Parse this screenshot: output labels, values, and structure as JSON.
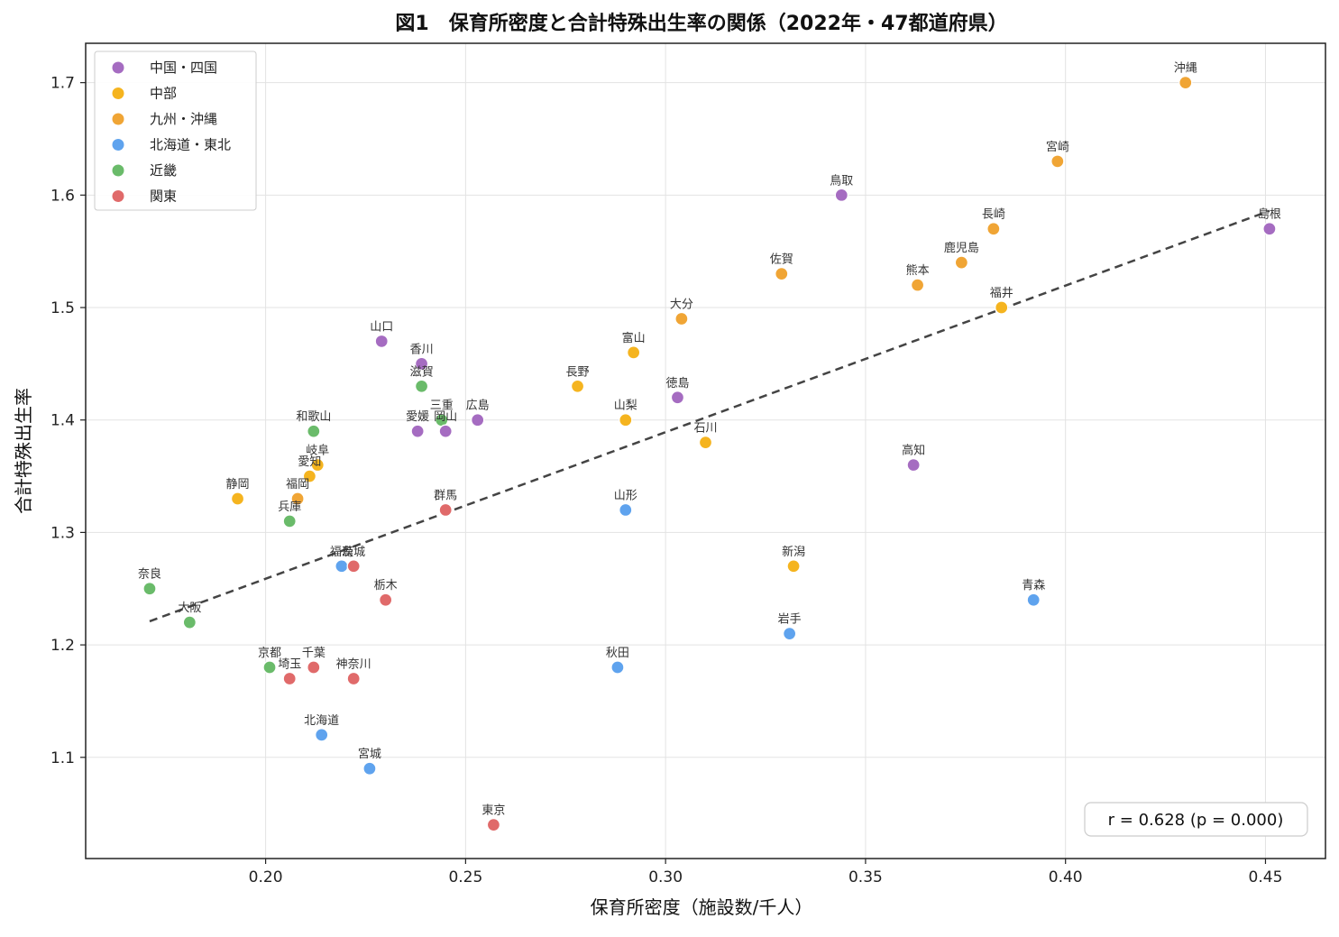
{
  "chart_data": {
    "type": "scatter",
    "title": "図1　保育所密度と合計特殊出生率の関係（2022年・47都道府県）",
    "xlabel": "保育所密度（施設数/千人）",
    "ylabel": "合計特殊出生率",
    "xlim": [
      0.155,
      0.465
    ],
    "ylim": [
      1.01,
      1.735
    ],
    "xticks": [
      0.2,
      0.25,
      0.3,
      0.35,
      0.4,
      0.45
    ],
    "xtick_labels": [
      "0.20",
      "0.25",
      "0.30",
      "0.35",
      "0.40",
      "0.45"
    ],
    "yticks": [
      1.1,
      1.2,
      1.3,
      1.4,
      1.5,
      1.6,
      1.7
    ],
    "ytick_labels": [
      "1.1",
      "1.2",
      "1.3",
      "1.4",
      "1.5",
      "1.6",
      "1.7"
    ],
    "grid": true,
    "legend_position": "top-left",
    "regions": [
      {
        "name": "中国・四国",
        "color": "#a56cc1"
      },
      {
        "name": "中部",
        "color": "#f5b41f"
      },
      {
        "name": "九州・沖縄",
        "color": "#f0a535"
      },
      {
        "name": "北海道・東北",
        "color": "#5fa3ee"
      },
      {
        "name": "近畿",
        "color": "#6abb6a"
      },
      {
        "name": "関東",
        "color": "#e06a6a"
      }
    ],
    "points": [
      {
        "label": "北海道",
        "x": 0.214,
        "y": 1.12,
        "region": 3
      },
      {
        "label": "青森",
        "x": 0.392,
        "y": 1.24,
        "region": 3
      },
      {
        "label": "岩手",
        "x": 0.331,
        "y": 1.21,
        "region": 3
      },
      {
        "label": "宮城",
        "x": 0.226,
        "y": 1.09,
        "region": 3
      },
      {
        "label": "秋田",
        "x": 0.288,
        "y": 1.18,
        "region": 3
      },
      {
        "label": "山形",
        "x": 0.29,
        "y": 1.32,
        "region": 3
      },
      {
        "label": "福島",
        "x": 0.219,
        "y": 1.27,
        "region": 3
      },
      {
        "label": "茨城",
        "x": 0.222,
        "y": 1.27,
        "region": 5
      },
      {
        "label": "栃木",
        "x": 0.23,
        "y": 1.24,
        "region": 5
      },
      {
        "label": "群馬",
        "x": 0.245,
        "y": 1.32,
        "region": 5
      },
      {
        "label": "埼玉",
        "x": 0.206,
        "y": 1.17,
        "region": 5
      },
      {
        "label": "千葉",
        "x": 0.212,
        "y": 1.18,
        "region": 5
      },
      {
        "label": "東京",
        "x": 0.257,
        "y": 1.04,
        "region": 5
      },
      {
        "label": "神奈川",
        "x": 0.222,
        "y": 1.17,
        "region": 5
      },
      {
        "label": "新潟",
        "x": 0.332,
        "y": 1.27,
        "region": 1
      },
      {
        "label": "富山",
        "x": 0.292,
        "y": 1.46,
        "region": 1
      },
      {
        "label": "石川",
        "x": 0.31,
        "y": 1.38,
        "region": 1
      },
      {
        "label": "福井",
        "x": 0.384,
        "y": 1.5,
        "region": 1
      },
      {
        "label": "山梨",
        "x": 0.29,
        "y": 1.4,
        "region": 1
      },
      {
        "label": "長野",
        "x": 0.278,
        "y": 1.43,
        "region": 1
      },
      {
        "label": "岐阜",
        "x": 0.213,
        "y": 1.36,
        "region": 1
      },
      {
        "label": "静岡",
        "x": 0.193,
        "y": 1.33,
        "region": 1
      },
      {
        "label": "愛知",
        "x": 0.211,
        "y": 1.35,
        "region": 1
      },
      {
        "label": "三重",
        "x": 0.244,
        "y": 1.4,
        "region": 4
      },
      {
        "label": "滋賀",
        "x": 0.239,
        "y": 1.43,
        "region": 4
      },
      {
        "label": "京都",
        "x": 0.201,
        "y": 1.18,
        "region": 4
      },
      {
        "label": "大阪",
        "x": 0.181,
        "y": 1.22,
        "region": 4
      },
      {
        "label": "兵庫",
        "x": 0.206,
        "y": 1.31,
        "region": 4
      },
      {
        "label": "奈良",
        "x": 0.171,
        "y": 1.25,
        "region": 4
      },
      {
        "label": "和歌山",
        "x": 0.212,
        "y": 1.39,
        "region": 4
      },
      {
        "label": "鳥取",
        "x": 0.344,
        "y": 1.6,
        "region": 0
      },
      {
        "label": "島根",
        "x": 0.451,
        "y": 1.57,
        "region": 0
      },
      {
        "label": "岡山",
        "x": 0.245,
        "y": 1.39,
        "region": 0
      },
      {
        "label": "広島",
        "x": 0.253,
        "y": 1.4,
        "region": 0
      },
      {
        "label": "山口",
        "x": 0.229,
        "y": 1.47,
        "region": 0
      },
      {
        "label": "徳島",
        "x": 0.303,
        "y": 1.42,
        "region": 0
      },
      {
        "label": "香川",
        "x": 0.239,
        "y": 1.45,
        "region": 0
      },
      {
        "label": "愛媛",
        "x": 0.238,
        "y": 1.39,
        "region": 0
      },
      {
        "label": "高知",
        "x": 0.362,
        "y": 1.36,
        "region": 0
      },
      {
        "label": "福岡",
        "x": 0.208,
        "y": 1.33,
        "region": 2
      },
      {
        "label": "佐賀",
        "x": 0.329,
        "y": 1.53,
        "region": 2
      },
      {
        "label": "長崎",
        "x": 0.382,
        "y": 1.57,
        "region": 2
      },
      {
        "label": "熊本",
        "x": 0.363,
        "y": 1.52,
        "region": 2
      },
      {
        "label": "大分",
        "x": 0.304,
        "y": 1.49,
        "region": 2
      },
      {
        "label": "宮崎",
        "x": 0.398,
        "y": 1.63,
        "region": 2
      },
      {
        "label": "鹿児島",
        "x": 0.374,
        "y": 1.54,
        "region": 2
      },
      {
        "label": "沖縄",
        "x": 0.43,
        "y": 1.7,
        "region": 2
      }
    ],
    "trendline": {
      "x": [
        0.171,
        0.451
      ],
      "y": [
        1.221,
        1.586
      ],
      "style": "dashed",
      "color": "#444444"
    },
    "annotation": "r = 0.628  (p = 0.000)"
  }
}
